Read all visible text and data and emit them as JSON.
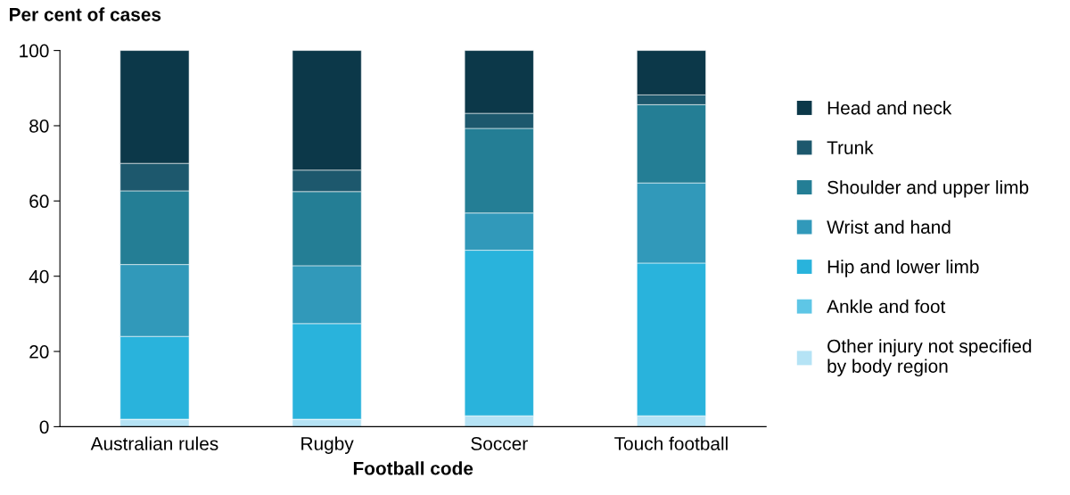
{
  "chart_data": {
    "type": "bar",
    "stacked": true,
    "ylabel": "Per cent of cases",
    "xlabel": "Football code",
    "categories": [
      "Australian rules",
      "Rugby",
      "Soccer",
      "Touch football"
    ],
    "series": [
      {
        "name": "Other injury not specified by body region",
        "color": "#b5e3f5",
        "values": [
          2.0,
          2.0,
          2.9,
          2.9
        ]
      },
      {
        "name": "Ankle and foot",
        "color": "#5ec6e6",
        "values": [
          0,
          0,
          0,
          0
        ]
      },
      {
        "name": "Hip and lower limb",
        "color": "#29b3dc",
        "values": [
          22.0,
          25.4,
          44.0,
          40.6
        ]
      },
      {
        "name": "Wrist and hand",
        "color": "#3199ba",
        "values": [
          19.1,
          15.4,
          9.9,
          21.3
        ]
      },
      {
        "name": "Shoulder and upper limb",
        "color": "#247e95",
        "values": [
          19.6,
          19.7,
          22.5,
          20.8
        ]
      },
      {
        "name": "Trunk",
        "color": "#1d586d",
        "values": [
          7.3,
          5.7,
          4.0,
          2.6
        ]
      },
      {
        "name": "Head and neck",
        "color": "#0c3849",
        "values": [
          30.0,
          31.8,
          16.7,
          11.8
        ]
      }
    ],
    "ylim": [
      0,
      100
    ],
    "yticks": [
      0,
      20,
      40,
      60,
      80,
      100
    ],
    "grid": false,
    "legend": "right"
  }
}
